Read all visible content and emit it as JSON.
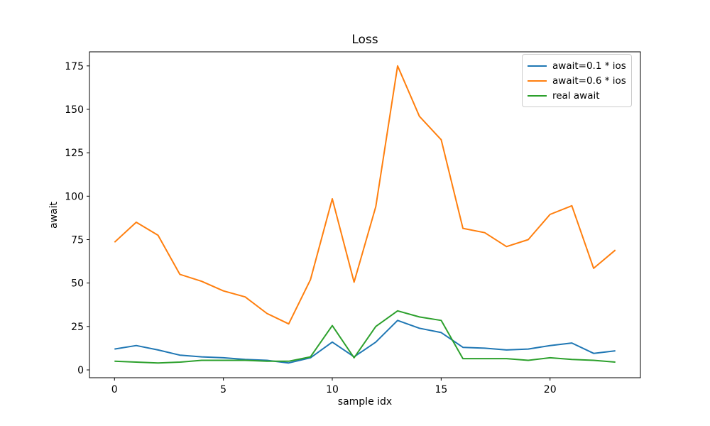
{
  "chart_data": {
    "type": "line",
    "title": "Loss",
    "xlabel": "sample idx",
    "ylabel": "await",
    "grid": false,
    "legend_position": "upper right",
    "x": [
      0,
      1,
      2,
      3,
      4,
      5,
      6,
      7,
      8,
      9,
      10,
      11,
      12,
      13,
      14,
      15,
      16,
      17,
      18,
      19,
      20,
      21,
      22,
      23
    ],
    "series": [
      {
        "name": "await=0.1 * ios",
        "color": "#1f77b4",
        "values": [
          12,
          14,
          11.5,
          8.5,
          7.5,
          7,
          6,
          5.5,
          4,
          7,
          16,
          7.5,
          16,
          28.5,
          24,
          21.5,
          13,
          12.5,
          11.5,
          12,
          14,
          15.5,
          9.5,
          11
        ]
      },
      {
        "name": "await=0.6 * ios",
        "color": "#ff7f0e",
        "values": [
          73.5,
          85,
          77.5,
          55,
          51,
          45.5,
          42,
          32.5,
          26.5,
          52,
          98.5,
          50.5,
          94,
          175,
          146,
          132.5,
          81.5,
          79,
          71,
          75,
          89.5,
          94.5,
          58.5,
          69
        ]
      },
      {
        "name": "real await",
        "color": "#2ca02c",
        "values": [
          5,
          4.5,
          4,
          4.5,
          5.5,
          5.5,
          5.5,
          5,
          5,
          7.5,
          25.5,
          7,
          25,
          34,
          30.5,
          28.5,
          6.5,
          6.5,
          6.5,
          5.5,
          7,
          6,
          5.5,
          4.5
        ]
      }
    ],
    "xticks": [
      0,
      5,
      10,
      15,
      20
    ],
    "yticks": [
      0,
      25,
      50,
      75,
      100,
      125,
      150,
      175
    ],
    "xlim": [
      -1.15,
      24.15
    ],
    "ylim": [
      -4.5,
      183.1
    ]
  },
  "colors": {
    "background": "#ffffff",
    "spine": "#000000",
    "legend_border": "#cccccc"
  }
}
